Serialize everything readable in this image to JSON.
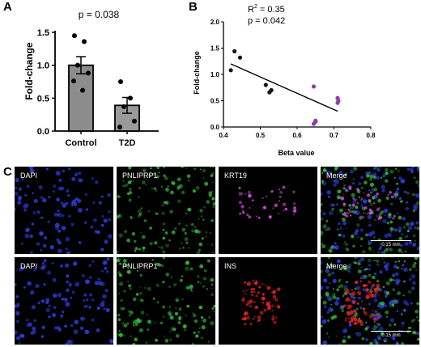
{
  "panel_a": {
    "letter": "A",
    "annotation": "p = 0.038"
  },
  "panel_b": {
    "letter": "B",
    "r2_prefix": "R",
    "r2_sup": "2",
    "r2_suffix": " = 0.35",
    "annotation": "p = 0.042"
  },
  "panel_c": {
    "letter": "C",
    "tiles": [
      {
        "label": "DAPI",
        "scale": ""
      },
      {
        "label": "PNLIPRP1",
        "scale": ""
      },
      {
        "label": "KRT19",
        "scale": ""
      },
      {
        "label": "Merge",
        "scale": "0.15 mm"
      },
      {
        "label": "DAPI",
        "scale": ""
      },
      {
        "label": "PNLIPRP1",
        "scale": ""
      },
      {
        "label": "INS",
        "scale": ""
      },
      {
        "label": "Merge",
        "scale": "0.15 mm"
      }
    ],
    "colors": {
      "dapi": "#2b3bd6",
      "pnliprp1": "#36c23a",
      "krt19": "#d24bd8",
      "ins": "#e22222"
    }
  },
  "chart_data": [
    {
      "type": "bar",
      "title": "",
      "xlabel": "",
      "ylabel": "Fold-change",
      "categories": [
        "Control",
        "T2D"
      ],
      "values": [
        1.0,
        0.39
      ],
      "error_sem": [
        0.13,
        0.12
      ],
      "points": [
        [
          1.45,
          1.36,
          1.0,
          0.88,
          0.76,
          0.62
        ],
        [
          0.75,
          0.5,
          0.37,
          0.15,
          0.06
        ]
      ],
      "ylim": [
        0.0,
        1.5
      ],
      "yticks": [
        "0.0",
        "0.5",
        "1.0",
        "1.5"
      ],
      "bar_colors": [
        "#8c8c8c",
        "#9a9a9a"
      ],
      "annotation": "p = 0.038"
    },
    {
      "type": "scatter",
      "title": "",
      "xlabel": "Beta value",
      "ylabel": "Fold-change",
      "xlim": [
        0.4,
        0.8
      ],
      "ylim": [
        0.0,
        2.0
      ],
      "xticks": [
        "0.4",
        "0.5",
        "0.6",
        "0.7",
        "0.8"
      ],
      "yticks": [
        "0.0",
        "0.5",
        "1.0",
        "1.5",
        "2.0"
      ],
      "series": [
        {
          "color": "#111111",
          "x": [
            0.42,
            0.43,
            0.445,
            0.515,
            0.525,
            0.53
          ],
          "y": [
            1.08,
            1.44,
            1.32,
            0.8,
            0.66,
            0.7
          ]
        },
        {
          "color": "#8e3ea8",
          "x": [
            0.645,
            0.65,
            0.65,
            0.645,
            0.71,
            0.712,
            0.71
          ],
          "y": [
            0.77,
            0.12,
            0.1,
            0.06,
            0.55,
            0.5,
            0.46
          ]
        }
      ],
      "regression": {
        "x": [
          0.42,
          0.71
        ],
        "y": [
          1.2,
          0.3
        ]
      },
      "r2": "0.35",
      "annotation": "p = 0.042"
    }
  ]
}
